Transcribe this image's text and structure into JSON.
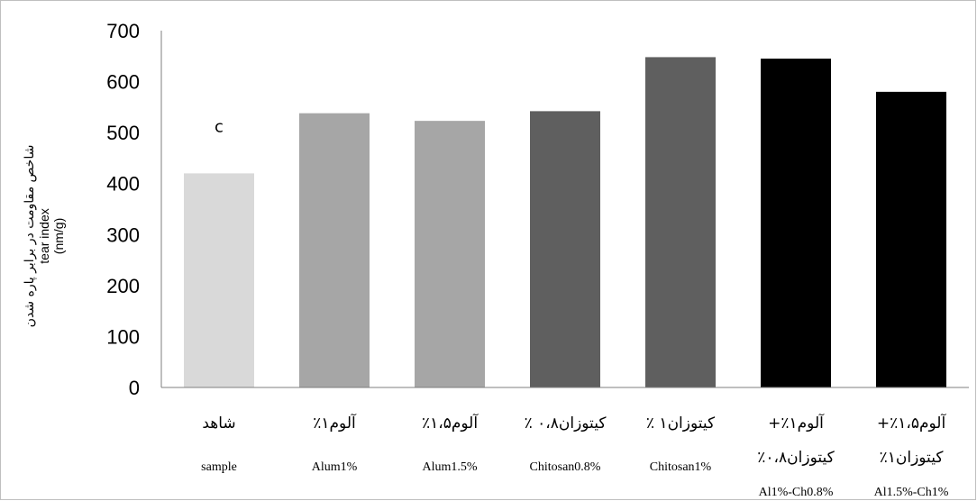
{
  "chart_data": {
    "type": "bar",
    "title": "",
    "ylabel": {
      "fa": "شاخص مقاومت در برابر پاره شدن",
      "en": "tear index",
      "unit": "(nm/g)"
    },
    "xlabel": "",
    "ylim": [
      0,
      700
    ],
    "yticks": [
      0,
      100,
      200,
      300,
      400,
      500,
      600,
      700
    ],
    "grid": false,
    "legend": "none",
    "categories": [
      {
        "fa": [
          "شاهد"
        ],
        "en": "sample"
      },
      {
        "fa": [
          "آلوم۱٪"
        ],
        "en": "Alum1%"
      },
      {
        "fa": [
          "آلوم۱،۵٪"
        ],
        "en": "Alum1.5%"
      },
      {
        "fa": [
          "کیتوزان۰،۸ ٪"
        ],
        "en": "Chitosan0.8%"
      },
      {
        "fa": [
          "کیتوزان۱ ٪"
        ],
        "en": "Chitosan1%"
      },
      {
        "fa": [
          "آلوم۱٪+",
          "کیتوزان۰،۸٪"
        ],
        "en": "Al1%-Ch0.8%"
      },
      {
        "fa": [
          "آلوم۱،۵٪+",
          "کیتوزان۱٪"
        ],
        "en": "Al1.5%-Ch1%"
      }
    ],
    "values": [
      420,
      538,
      523,
      542,
      648,
      645,
      580
    ],
    "bar_colors": [
      "#d9d9d9",
      "#a6a6a6",
      "#a6a6a6",
      "#5f5f5f",
      "#5f5f5f",
      "#000000",
      "#000000"
    ],
    "data_labels": [
      "c",
      "",
      "",
      "",
      "",
      "",
      ""
    ]
  }
}
